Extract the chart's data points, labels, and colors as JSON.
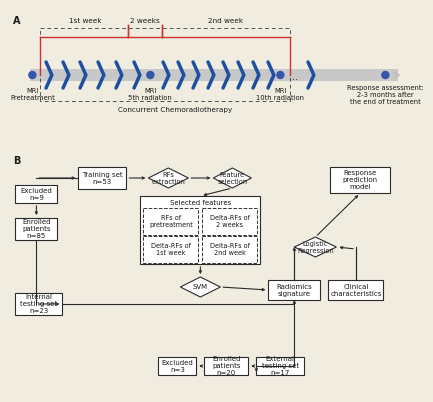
{
  "bg_color": "#f0ece0",
  "text_color": "#1a1a1a",
  "box_edge_color": "#2a2a2a",
  "arrow_color": "#2a2a2a",
  "blue_chevron_color": "#1e4fa0",
  "red_line_color": "#cc2222",
  "gray_bar_color": "#b0b0b0",
  "panel_a_label": "A",
  "panel_b_label": "B",
  "font_size": 5.2,
  "week_labels": [
    "1st week",
    "2 weeks",
    "2nd week"
  ],
  "concurrent_label": "Concurrent Chemoradiotherapy",
  "mri_labels": [
    "MRI\nPretreatment",
    "MRI\n5th radiation",
    "MRI\n10th radiation",
    "Response assessment:\n2-3 months after\nthe end of treatment"
  ]
}
